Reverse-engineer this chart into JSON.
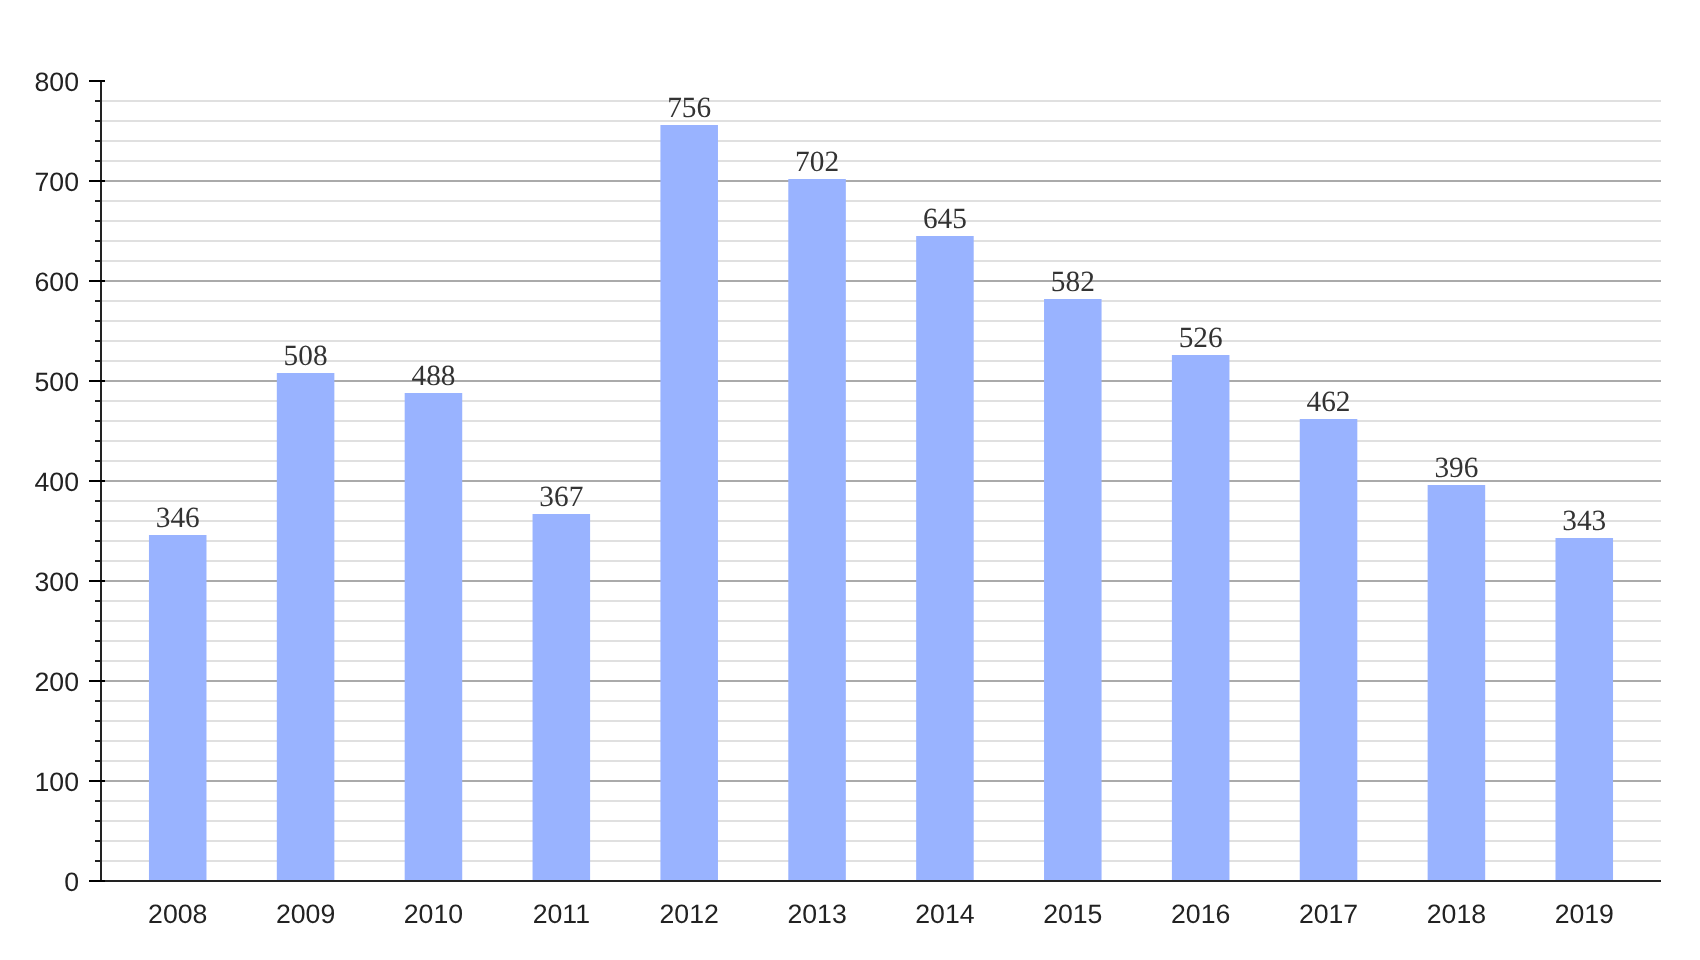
{
  "chart_data": {
    "type": "bar",
    "categories": [
      "2008",
      "2009",
      "2010",
      "2011",
      "2012",
      "2013",
      "2014",
      "2015",
      "2016",
      "2017",
      "2018",
      "2019"
    ],
    "values": [
      346,
      508,
      488,
      367,
      756,
      702,
      645,
      582,
      526,
      462,
      396,
      343
    ],
    "color": "#99b3ff",
    "ylim": [
      0,
      800
    ],
    "yticks": [
      0,
      100,
      200,
      300,
      400,
      500,
      600,
      700,
      800
    ],
    "grid": "y",
    "data_labels": true
  }
}
